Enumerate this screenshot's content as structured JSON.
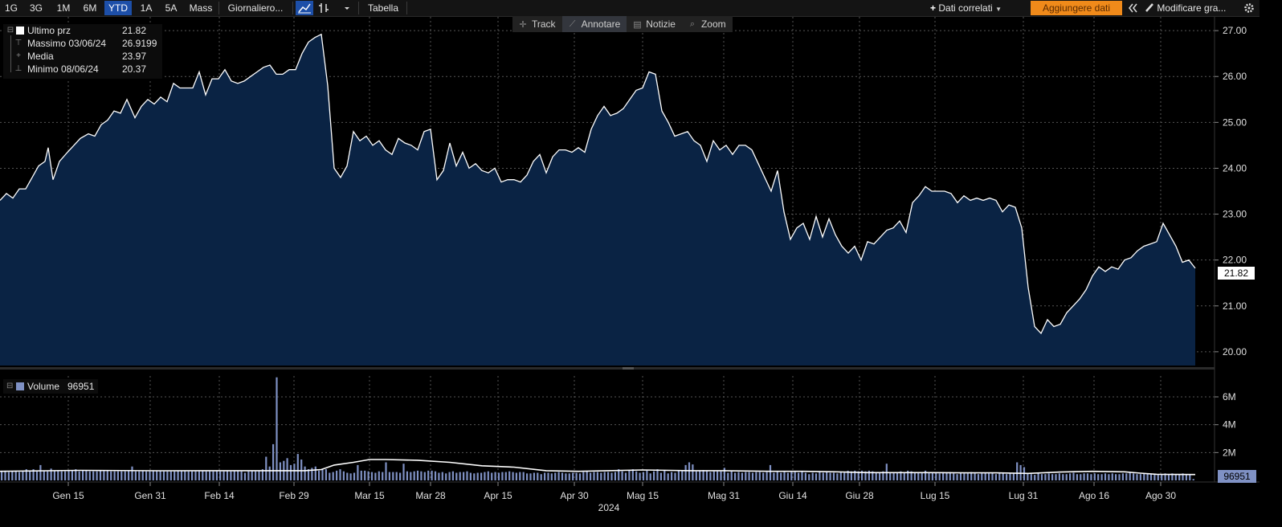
{
  "toolbar": {
    "periods": [
      "1G",
      "3G",
      "1M",
      "6M",
      "YTD",
      "1A",
      "5A",
      "Mass"
    ],
    "active_period": "YTD",
    "frequency": "Giornaliero...",
    "table_label": "Tabella",
    "related_label": "Dati correlati",
    "add_data_label": "Aggiungere dati",
    "edit_chart_label": "Modificare gra..."
  },
  "tools": [
    {
      "label": "Track",
      "icon": "crosshair-icon"
    },
    {
      "label": "Annotare",
      "icon": "pencil-icon"
    },
    {
      "label": "Notizie",
      "icon": "news-icon"
    },
    {
      "label": "Zoom",
      "icon": "magnifier-icon"
    }
  ],
  "legend": {
    "last_price": {
      "label": "Ultimo prz",
      "value": "21.82"
    },
    "high": {
      "label": "Massimo 03/06/24",
      "value": "26.9199"
    },
    "average": {
      "label": "Media",
      "value": "23.97"
    },
    "low": {
      "label": "Minimo 08/06/24",
      "value": "20.37"
    }
  },
  "volume_legend": {
    "label": "Volume",
    "value": "96951"
  },
  "colors": {
    "background": "#000000",
    "area_fill": "#0a2344",
    "price_line": "#ffffff",
    "volume_bar": "#7f91c4",
    "active_tab": "#1d4fa8",
    "add_data_button": "#f08a1a"
  },
  "chart_data": [
    {
      "type": "area",
      "series": [
        {
          "name": "Ultimo prz"
        }
      ],
      "last_value": 21.82,
      "ylim": [
        19.7,
        27.3
      ],
      "y_ticks": [
        "20.00",
        "21.00",
        "22.00",
        "23.00",
        "24.00",
        "25.00",
        "26.00",
        "27.00"
      ],
      "x_ticks": [
        "Gen 15",
        "Gen 31",
        "Feb 14",
        "Feb 29",
        "Mar 15",
        "Mar 28",
        "Apr 15",
        "Apr 30",
        "Mag 15",
        "Mag 31",
        "Giu 14",
        "Giu 28",
        "Lug 15",
        "Lug 31",
        "Ago 16",
        "Ago 30"
      ],
      "year_label": "2024",
      "grid": true,
      "price_points": [
        [
          0,
          23.3
        ],
        [
          8,
          23.45
        ],
        [
          16,
          23.35
        ],
        [
          24,
          23.55
        ],
        [
          32,
          23.55
        ],
        [
          40,
          23.8
        ],
        [
          48,
          24.05
        ],
        [
          56,
          24.15
        ],
        [
          60,
          24.45
        ],
        [
          66,
          23.75
        ],
        [
          74,
          24.15
        ],
        [
          84,
          24.35
        ],
        [
          92,
          24.5
        ],
        [
          100,
          24.65
        ],
        [
          110,
          24.75
        ],
        [
          118,
          24.7
        ],
        [
          126,
          24.95
        ],
        [
          134,
          25.05
        ],
        [
          142,
          25.25
        ],
        [
          150,
          25.2
        ],
        [
          158,
          25.5
        ],
        [
          168,
          25.1
        ],
        [
          176,
          25.35
        ],
        [
          184,
          25.5
        ],
        [
          192,
          25.4
        ],
        [
          200,
          25.55
        ],
        [
          208,
          25.45
        ],
        [
          216,
          25.85
        ],
        [
          224,
          25.75
        ],
        [
          232,
          25.75
        ],
        [
          240,
          25.75
        ],
        [
          248,
          26.1
        ],
        [
          256,
          25.6
        ],
        [
          264,
          25.95
        ],
        [
          272,
          25.95
        ],
        [
          280,
          26.15
        ],
        [
          288,
          25.9
        ],
        [
          296,
          25.85
        ],
        [
          304,
          25.9
        ],
        [
          312,
          26.0
        ],
        [
          320,
          26.1
        ],
        [
          328,
          26.2
        ],
        [
          336,
          26.25
        ],
        [
          344,
          26.05
        ],
        [
          352,
          26.05
        ],
        [
          360,
          26.15
        ],
        [
          368,
          26.15
        ],
        [
          376,
          26.5
        ],
        [
          384,
          26.75
        ],
        [
          392,
          26.85
        ],
        [
          400,
          26.92
        ],
        [
          408,
          25.8
        ],
        [
          416,
          24.0
        ],
        [
          424,
          23.8
        ],
        [
          432,
          24.05
        ],
        [
          440,
          24.8
        ],
        [
          448,
          24.6
        ],
        [
          456,
          24.7
        ],
        [
          464,
          24.5
        ],
        [
          472,
          24.6
        ],
        [
          480,
          24.4
        ],
        [
          488,
          24.3
        ],
        [
          496,
          24.65
        ],
        [
          504,
          24.55
        ],
        [
          512,
          24.5
        ],
        [
          520,
          24.4
        ],
        [
          528,
          24.8
        ],
        [
          536,
          24.85
        ],
        [
          544,
          23.75
        ],
        [
          552,
          23.95
        ],
        [
          560,
          24.55
        ],
        [
          568,
          24.05
        ],
        [
          576,
          24.35
        ],
        [
          584,
          24.0
        ],
        [
          592,
          24.1
        ],
        [
          600,
          23.95
        ],
        [
          608,
          23.9
        ],
        [
          616,
          24.0
        ],
        [
          624,
          23.7
        ],
        [
          632,
          23.75
        ],
        [
          640,
          23.75
        ],
        [
          648,
          23.7
        ],
        [
          656,
          23.85
        ],
        [
          664,
          24.15
        ],
        [
          672,
          24.3
        ],
        [
          680,
          23.9
        ],
        [
          688,
          24.25
        ],
        [
          696,
          24.4
        ],
        [
          704,
          24.4
        ],
        [
          712,
          24.35
        ],
        [
          720,
          24.45
        ],
        [
          728,
          24.35
        ],
        [
          736,
          24.85
        ],
        [
          744,
          25.15
        ],
        [
          752,
          25.35
        ],
        [
          760,
          25.15
        ],
        [
          768,
          25.2
        ],
        [
          776,
          25.3
        ],
        [
          784,
          25.5
        ],
        [
          792,
          25.7
        ],
        [
          800,
          25.75
        ],
        [
          808,
          26.1
        ],
        [
          816,
          26.05
        ],
        [
          824,
          25.25
        ],
        [
          832,
          25.0
        ],
        [
          840,
          24.7
        ],
        [
          848,
          24.75
        ],
        [
          856,
          24.8
        ],
        [
          864,
          24.6
        ],
        [
          872,
          24.5
        ],
        [
          880,
          24.15
        ],
        [
          888,
          24.6
        ],
        [
          896,
          24.4
        ],
        [
          904,
          24.5
        ],
        [
          912,
          24.3
        ],
        [
          920,
          24.5
        ],
        [
          928,
          24.5
        ],
        [
          936,
          24.4
        ],
        [
          944,
          24.1
        ],
        [
          952,
          23.8
        ],
        [
          960,
          23.5
        ],
        [
          968,
          23.95
        ],
        [
          976,
          23.05
        ],
        [
          984,
          22.45
        ],
        [
          992,
          22.7
        ],
        [
          1000,
          22.8
        ],
        [
          1008,
          22.45
        ],
        [
          1016,
          22.95
        ],
        [
          1024,
          22.5
        ],
        [
          1032,
          22.9
        ],
        [
          1040,
          22.55
        ],
        [
          1048,
          22.3
        ],
        [
          1056,
          22.15
        ],
        [
          1064,
          22.3
        ],
        [
          1072,
          22.0
        ],
        [
          1080,
          22.4
        ],
        [
          1088,
          22.35
        ],
        [
          1096,
          22.5
        ],
        [
          1104,
          22.65
        ],
        [
          1112,
          22.7
        ],
        [
          1120,
          22.85
        ],
        [
          1128,
          22.6
        ],
        [
          1136,
          23.25
        ],
        [
          1144,
          23.4
        ],
        [
          1152,
          23.6
        ],
        [
          1160,
          23.5
        ],
        [
          1168,
          23.5
        ],
        [
          1176,
          23.5
        ],
        [
          1184,
          23.45
        ],
        [
          1192,
          23.25
        ],
        [
          1200,
          23.4
        ],
        [
          1208,
          23.3
        ],
        [
          1216,
          23.35
        ],
        [
          1224,
          23.3
        ],
        [
          1232,
          23.35
        ],
        [
          1240,
          23.3
        ],
        [
          1248,
          23.05
        ],
        [
          1256,
          23.2
        ],
        [
          1264,
          23.15
        ],
        [
          1272,
          22.7
        ],
        [
          1280,
          21.4
        ],
        [
          1288,
          20.55
        ],
        [
          1296,
          20.4
        ],
        [
          1304,
          20.7
        ],
        [
          1312,
          20.55
        ],
        [
          1320,
          20.6
        ],
        [
          1328,
          20.85
        ],
        [
          1336,
          21.0
        ],
        [
          1344,
          21.15
        ],
        [
          1352,
          21.35
        ],
        [
          1360,
          21.65
        ],
        [
          1368,
          21.85
        ],
        [
          1376,
          21.75
        ],
        [
          1384,
          21.85
        ],
        [
          1392,
          21.8
        ],
        [
          1400,
          22.0
        ],
        [
          1408,
          22.05
        ],
        [
          1416,
          22.2
        ],
        [
          1424,
          22.3
        ],
        [
          1432,
          22.35
        ],
        [
          1440,
          22.4
        ],
        [
          1448,
          22.8
        ],
        [
          1456,
          22.55
        ],
        [
          1464,
          22.3
        ],
        [
          1472,
          21.95
        ],
        [
          1480,
          22.0
        ],
        [
          1488,
          21.82
        ]
      ]
    },
    {
      "type": "bar",
      "series": [
        {
          "name": "Volume"
        }
      ],
      "last_value": 96951,
      "ylim": [
        0,
        7500000
      ],
      "y_ticks": [
        "2M",
        "4M",
        "6M"
      ],
      "volume_values": [
        700000,
        700000,
        600000,
        650000,
        700000,
        600000,
        700000,
        800000,
        700000,
        800000,
        650000,
        1100000,
        700000,
        650000,
        850000,
        700000,
        700000,
        650000,
        650000,
        700000,
        700000,
        800000,
        650000,
        700000,
        700000,
        650000,
        650000,
        650000,
        700000,
        700000,
        700000,
        650000,
        650000,
        650000,
        650000,
        650000,
        700000,
        1000000,
        650000,
        650000,
        700000,
        650000,
        650000,
        700000,
        700000,
        700000,
        650000,
        650000,
        650000,
        650000,
        700000,
        700000,
        700000,
        650000,
        650000,
        650000,
        650000,
        700000,
        650000,
        650000,
        650000,
        700000,
        650000,
        650000,
        700000,
        650000,
        700000,
        700000,
        650000,
        550000,
        650000,
        700000,
        650000,
        700000,
        800000,
        1700000,
        1000000,
        2600000,
        7400000,
        1300000,
        1400000,
        1600000,
        1100000,
        1200000,
        1900000,
        1500000,
        1000000,
        800000,
        900000,
        1000000,
        700000,
        850000,
        800000,
        550000,
        600000,
        700000,
        800000,
        650000,
        550000,
        500000,
        550000,
        1100000,
        700000,
        700000,
        650000,
        600000,
        550000,
        650000,
        600000,
        1300000,
        600000,
        600000,
        600000,
        550000,
        1200000,
        650000,
        600000,
        650000,
        700000,
        650000,
        600000,
        700000,
        700000,
        650000,
        550000,
        600000,
        500000,
        600000,
        650000,
        550000,
        600000,
        600000,
        650000,
        550000,
        500000,
        550000,
        550000,
        600000,
        650000,
        550000,
        600000,
        550000,
        600000,
        600000,
        650000,
        600000,
        550000,
        600000,
        600000,
        500000,
        500000,
        550000,
        550000,
        450000,
        550000,
        550000,
        500000,
        550000,
        600000,
        550000,
        500000,
        500000,
        550000,
        550000,
        500000,
        600000,
        650000,
        550000,
        600000,
        600000,
        550000,
        600000,
        600000,
        550000,
        600000,
        800000,
        650000,
        550000,
        700000,
        800000,
        650000,
        550000,
        600000,
        700000,
        500000,
        650000,
        800000,
        550000,
        700000,
        500000,
        600000,
        550000,
        700000,
        700000,
        1100000,
        1300000,
        1150000,
        650000,
        700000,
        750000,
        700000,
        600000,
        650000,
        650000,
        650000,
        900000,
        550000,
        650000,
        550000,
        600000,
        550000,
        600000,
        600000,
        550000,
        600000,
        600000,
        550000,
        600000,
        1100000,
        550000,
        600000,
        550000,
        600000,
        550000,
        600000,
        600000,
        550000,
        650000,
        550000,
        450000,
        550000,
        500000,
        600000,
        550000,
        600000,
        550000,
        550000,
        500000,
        600000,
        550000,
        700000,
        650000,
        700000,
        650000,
        700000,
        650000,
        700000,
        650000,
        550000,
        600000,
        650000,
        1200000,
        600000,
        550000,
        600000,
        650000,
        600000,
        700000,
        650000,
        600000,
        550000,
        600000,
        700000,
        550000,
        600000,
        550000,
        500000,
        600000,
        550000,
        600000,
        500000,
        450000,
        550000,
        500000,
        500000,
        600000,
        500000,
        450000,
        500000,
        550000,
        500000,
        550000,
        450000,
        500000,
        500000,
        450000,
        500000,
        500000,
        1300000,
        1100000,
        950000,
        500000,
        450000,
        400000,
        500000,
        450000,
        450000,
        500000,
        450000,
        450000,
        500000,
        450000,
        450000,
        500000,
        550000,
        450000,
        450000,
        500000,
        500000,
        450000,
        500000,
        450000,
        450000,
        500000,
        450000,
        500000,
        450000,
        450000,
        500000,
        500000,
        550000,
        500000,
        450000,
        450000,
        500000,
        500000,
        500000,
        450000,
        400000,
        450000,
        500000,
        450000,
        500000,
        450000,
        450000,
        500000,
        400000,
        450000,
        96951
      ],
      "moving_average_points": [
        [
          0,
          650000
        ],
        [
          100,
          720000
        ],
        [
          200,
          690000
        ],
        [
          300,
          700000
        ],
        [
          380,
          700000
        ],
        [
          400,
          780000
        ],
        [
          416,
          1100000
        ],
        [
          440,
          1300000
        ],
        [
          460,
          1500000
        ],
        [
          480,
          1500000
        ],
        [
          520,
          1450000
        ],
        [
          560,
          1300000
        ],
        [
          600,
          1050000
        ],
        [
          640,
          950000
        ],
        [
          680,
          700000
        ],
        [
          720,
          650000
        ],
        [
          800,
          750000
        ],
        [
          860,
          700000
        ],
        [
          900,
          700000
        ],
        [
          960,
          650000
        ],
        [
          1000,
          650000
        ],
        [
          1040,
          620000
        ],
        [
          1080,
          560000
        ],
        [
          1120,
          560000
        ],
        [
          1160,
          560000
        ],
        [
          1200,
          540000
        ],
        [
          1240,
          540000
        ],
        [
          1280,
          500000
        ],
        [
          1320,
          600000
        ],
        [
          1360,
          650000
        ],
        [
          1400,
          620000
        ],
        [
          1420,
          520000
        ],
        [
          1440,
          440000
        ],
        [
          1488,
          420000
        ]
      ]
    }
  ]
}
